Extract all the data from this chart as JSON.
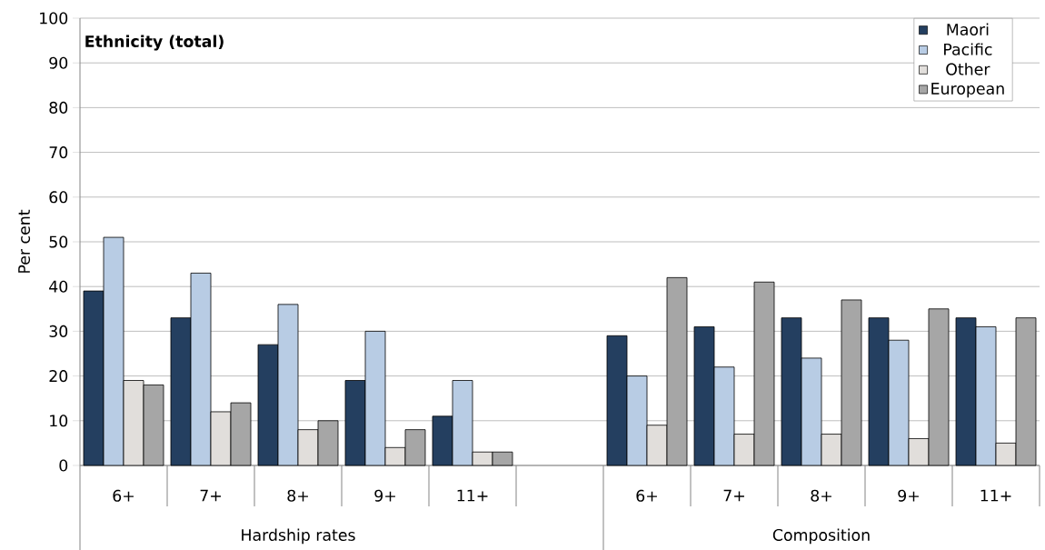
{
  "chart_data": {
    "type": "bar",
    "title": "Ethnicity (total)",
    "ylabel": "Per cent",
    "categories": [
      "6+",
      "7+",
      "8+",
      "9+",
      "11+",
      null,
      "6+",
      "7+",
      "8+",
      "9+",
      "11+"
    ],
    "series": [
      {
        "name": "Maori",
        "color": "#243f60",
        "values": [
          39,
          33,
          27,
          19,
          11,
          null,
          29,
          31,
          33,
          33,
          33
        ]
      },
      {
        "name": "Pacific",
        "color": "#b8cce4",
        "values": [
          51,
          43,
          36,
          30,
          19,
          null,
          20,
          22,
          24,
          28,
          31
        ]
      },
      {
        "name": "Other",
        "color": "#e1dedb",
        "values": [
          19,
          12,
          8,
          4,
          3,
          null,
          9,
          7,
          7,
          6,
          5
        ]
      },
      {
        "name": "European",
        "color": "#a6a6a6",
        "values": [
          18,
          14,
          10,
          8,
          3,
          null,
          42,
          41,
          37,
          35,
          33
        ]
      }
    ],
    "annotations": [
      "Hardship rates",
      "Composition"
    ],
    "ylim": [
      0,
      100
    ],
    "yticks": [
      0,
      10,
      20,
      30,
      40,
      50,
      60,
      70,
      80,
      90,
      100
    ],
    "grid": "y",
    "legend": "top right"
  }
}
